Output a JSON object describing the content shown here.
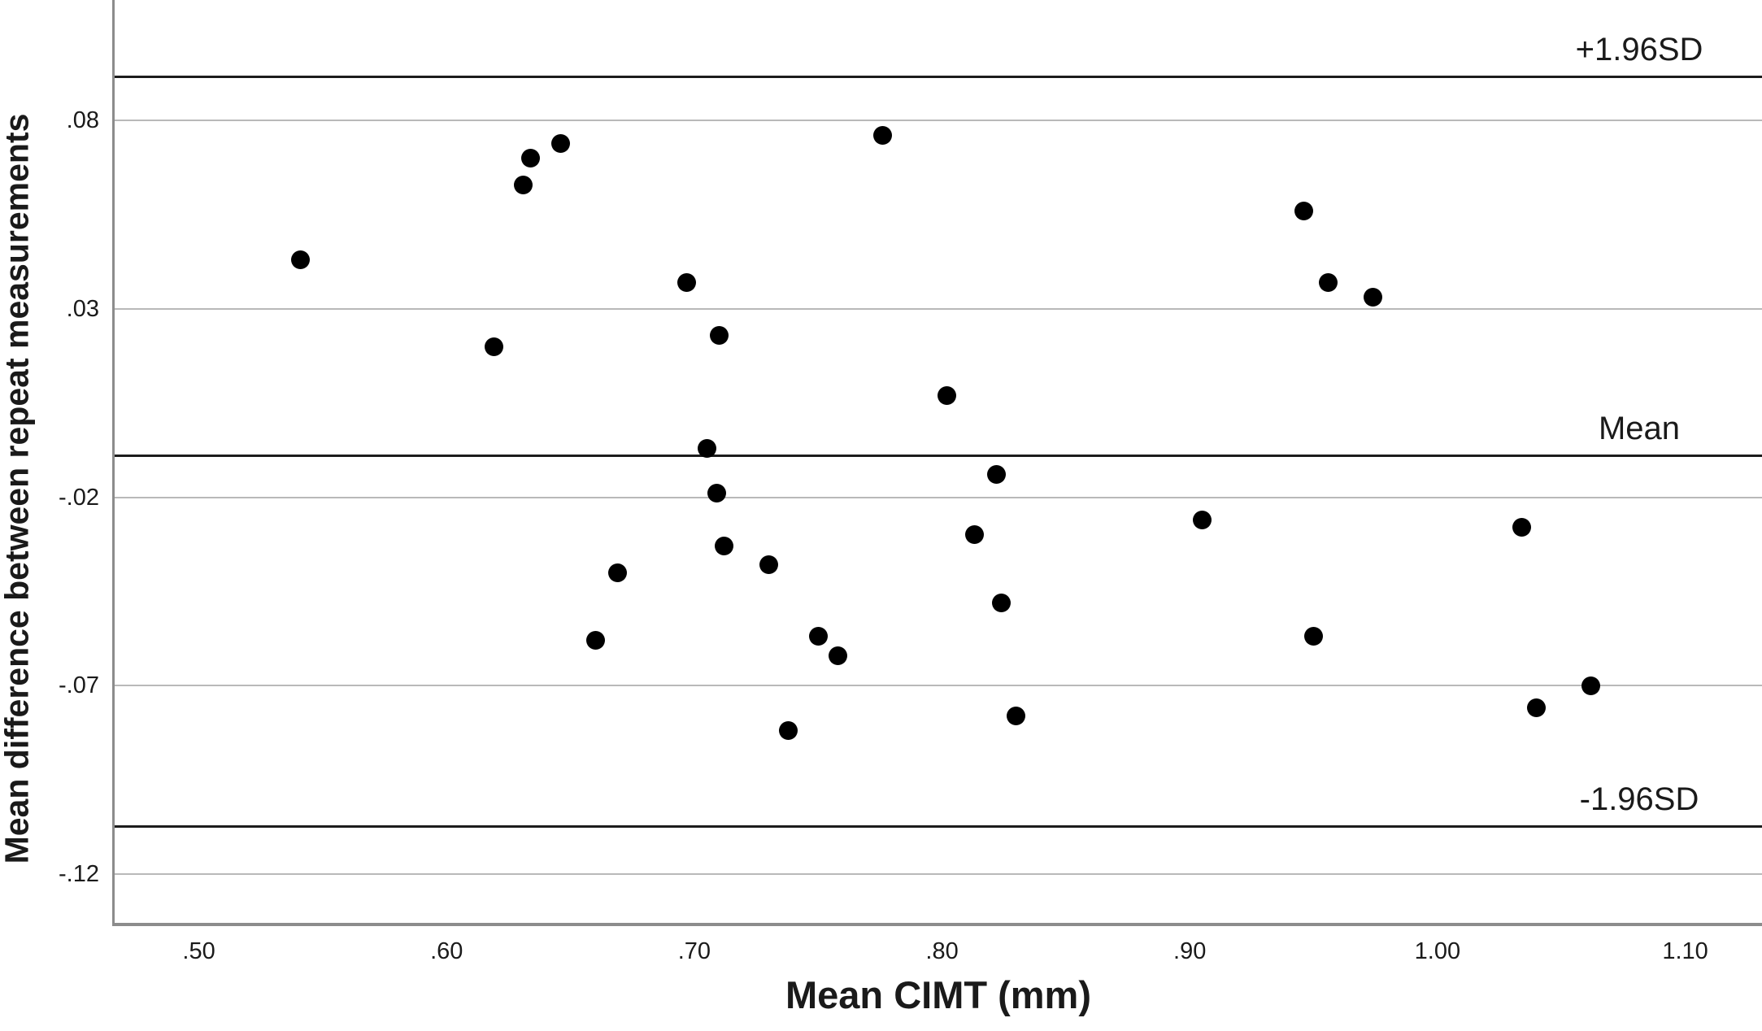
{
  "chart_data": {
    "type": "scatter",
    "title": "",
    "xlabel": "Mean CIMT (mm)",
    "ylabel": "Mean difference between repeat measurements",
    "x_range": [
      0.466,
      1.131
    ],
    "y_range": [
      -0.133,
      0.112
    ],
    "grid": true,
    "legend": false,
    "x_ticks": [
      {
        "label": ".50",
        "value": 0.5
      },
      {
        "label": ".60",
        "value": 0.6
      },
      {
        "label": ".70",
        "value": 0.7
      },
      {
        "label": ".80",
        "value": 0.8
      },
      {
        "label": ".90",
        "value": 0.9
      },
      {
        "label": "1.00",
        "value": 1.0
      },
      {
        "label": "1.10",
        "value": 1.1
      }
    ],
    "y_ticks": [
      {
        "label": ".08",
        "value": 0.08
      },
      {
        "label": ".03",
        "value": 0.03
      },
      {
        "label": "-.02",
        "value": -0.02
      },
      {
        "label": "-.07",
        "value": -0.07
      },
      {
        "label": "-.12",
        "value": -0.12
      }
    ],
    "reference_lines": [
      {
        "label": "+1.96SD",
        "value": 0.0915
      },
      {
        "label": "Mean",
        "value": -0.009
      },
      {
        "label": "-1.96SD",
        "value": -0.1075
      }
    ],
    "points": [
      [
        0.541,
        0.043
      ],
      [
        0.619,
        0.02
      ],
      [
        0.631,
        0.063
      ],
      [
        0.634,
        0.07
      ],
      [
        0.646,
        0.074
      ],
      [
        0.697,
        0.037
      ],
      [
        0.71,
        0.023
      ],
      [
        0.705,
        -0.007
      ],
      [
        0.709,
        -0.019
      ],
      [
        0.712,
        -0.033
      ],
      [
        0.669,
        -0.04
      ],
      [
        0.73,
        -0.038
      ],
      [
        0.66,
        -0.058
      ],
      [
        0.75,
        -0.057
      ],
      [
        0.758,
        -0.062
      ],
      [
        0.738,
        -0.082
      ],
      [
        0.776,
        0.076
      ],
      [
        0.802,
        0.007
      ],
      [
        0.822,
        -0.014
      ],
      [
        0.813,
        -0.03
      ],
      [
        0.824,
        -0.048
      ],
      [
        0.83,
        -0.078
      ],
      [
        0.905,
        -0.026
      ],
      [
        0.946,
        0.056
      ],
      [
        0.956,
        0.037
      ],
      [
        0.974,
        0.033
      ],
      [
        0.95,
        -0.057
      ],
      [
        1.034,
        -0.028
      ],
      [
        1.04,
        -0.076
      ],
      [
        1.062,
        -0.07
      ]
    ],
    "colors": {
      "point": "#000000",
      "reference_line": "#1c1c1c",
      "gridline": "#b9b9b9",
      "axis": "#8c8c8c",
      "text": "#1a1a1a"
    }
  }
}
